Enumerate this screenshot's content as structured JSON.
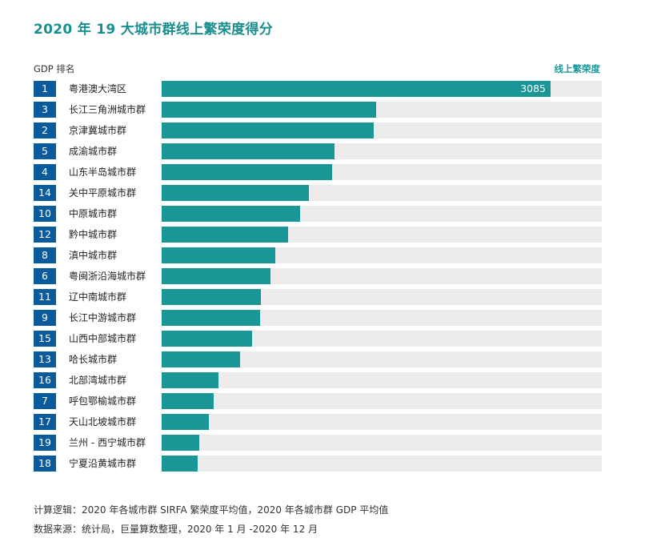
{
  "title": "2020 年 19 大城市群线上繁荣度得分",
  "left_header": "GDP 排名",
  "right_header": "线上繁荣度",
  "chart_data": {
    "type": "bar",
    "orientation": "horizontal",
    "title": "2020 年 19 大城市群线上繁荣度得分",
    "xlim": [
      0,
      3490
    ],
    "categories": [
      "粤港澳大湾区",
      "长江三角洲城市群",
      "京津冀城市群",
      "成渝城市群",
      "山东半岛城市群",
      "关中平原城市群",
      "中原城市群",
      "黔中城市群",
      "滇中城市群",
      "粤闽浙沿海城市群",
      "辽中南城市群",
      "长江中游城市群",
      "山西中部城市群",
      "哈长城市群",
      "北部湾城市群",
      "呼包鄂榆城市群",
      "天山北坡城市群",
      "兰州 - 西宁城市群",
      "宁夏沿黄城市群"
    ],
    "gdp_ranks": [
      "1",
      "3",
      "2",
      "5",
      "4",
      "14",
      "10",
      "12",
      "8",
      "6",
      "11",
      "9",
      "15",
      "13",
      "16",
      "7",
      "17",
      "19",
      "18"
    ],
    "values": [
      3085,
      1700,
      1680,
      1370,
      1350,
      1170,
      1100,
      1000,
      900,
      860,
      790,
      780,
      720,
      620,
      450,
      415,
      375,
      300,
      285
    ],
    "data_labels": [
      "3085",
      "",
      "",
      "",
      "",
      "",
      "",
      "",
      "",
      "",
      "",
      "",
      "",
      "",
      "",
      "",
      "",
      "",
      ""
    ],
    "grid": false,
    "legend": "none"
  },
  "colors": {
    "bar": "#1a9696",
    "track": "#ececec",
    "rank_badge": "#0b5a9b",
    "title": "#1a8f8f"
  },
  "footnotes": [
    "计算逻辑：2020 年各城市群 SIRFA 繁荣度平均值，2020 年各城市群 GDP 平均值",
    "数据来源：统计局，巨量算数整理，2020 年 1 月 -2020 年 12 月"
  ]
}
